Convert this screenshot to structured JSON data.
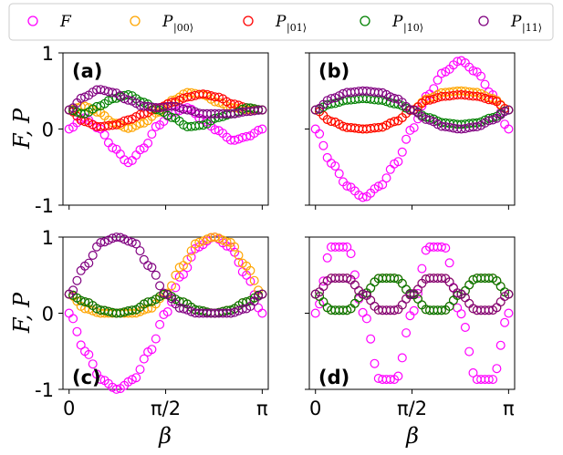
{
  "legend": {
    "entries": [
      {
        "symbol": "F",
        "sub": "",
        "color": "#ff00ff"
      },
      {
        "symbol": "P",
        "sub": "|00⟩",
        "color": "#ffa500"
      },
      {
        "symbol": "P",
        "sub": "|01⟩",
        "color": "#ff0000"
      },
      {
        "symbol": "P",
        "sub": "|10⟩",
        "color": "#008000"
      },
      {
        "symbol": "P",
        "sub": "|11⟩",
        "color": "#800080"
      }
    ]
  },
  "axes": {
    "ylabel": "F, P",
    "xlabel": "β",
    "y_ticks": [
      "1",
      "0",
      "-1"
    ],
    "x_ticks": [
      "0",
      "π/2",
      "π"
    ]
  },
  "chart_data": [
    {
      "type": "scatter",
      "panel_label": "(a)",
      "xlim": [
        -0.1,
        3.24
      ],
      "ylim": [
        -1,
        1
      ],
      "x_range": [
        0,
        3.1416
      ],
      "n_points": 50,
      "series": [
        {
          "name": "F",
          "color": "#ff00ff",
          "values": [
            0.0,
            0.15,
            0.01,
            -0.25,
            -0.44,
            -0.25,
            0.05,
            0.22,
            0.28,
            0.12,
            -0.02,
            -0.15,
            -0.1,
            0.0
          ],
          "values_note_x": "even samples of β over [0, π]"
        },
        {
          "name": "P|00⟩",
          "color": "#ffa500",
          "values": [
            0.25,
            0.3,
            0.22,
            0.08,
            0.01,
            0.08,
            0.22,
            0.38,
            0.48,
            0.45,
            0.35,
            0.28,
            0.25,
            0.25
          ]
        },
        {
          "name": "P|01⟩",
          "color": "#ff0000",
          "values": [
            0.25,
            0.1,
            0.03,
            0.05,
            0.12,
            0.2,
            0.28,
            0.35,
            0.42,
            0.46,
            0.42,
            0.33,
            0.28,
            0.25
          ]
        },
        {
          "name": "P|10⟩",
          "color": "#008000",
          "values": [
            0.25,
            0.2,
            0.3,
            0.4,
            0.45,
            0.35,
            0.25,
            0.15,
            0.03,
            0.05,
            0.15,
            0.2,
            0.28,
            0.25
          ]
        },
        {
          "name": "P|11⟩",
          "color": "#800080",
          "values": [
            0.25,
            0.42,
            0.52,
            0.48,
            0.38,
            0.3,
            0.28,
            0.3,
            0.25,
            0.2,
            0.2,
            0.2,
            0.23,
            0.25
          ]
        }
      ]
    },
    {
      "type": "scatter",
      "panel_label": "(b)",
      "xlim": [
        -0.1,
        3.24
      ],
      "ylim": [
        -1,
        1
      ],
      "x_range": [
        0,
        3.1416
      ],
      "n_points": 50,
      "series": [
        {
          "name": "F",
          "color": "#ff00ff",
          "values": [
            0.0,
            -0.45,
            -0.75,
            -0.9,
            -0.75,
            -0.45,
            0.0,
            0.45,
            0.75,
            0.9,
            0.75,
            0.45,
            0.0
          ]
        },
        {
          "name": "P|00⟩",
          "color": "#ffa500",
          "values": [
            0.25,
            0.1,
            0.02,
            0.0,
            0.02,
            0.1,
            0.25,
            0.4,
            0.48,
            0.5,
            0.48,
            0.4,
            0.25
          ]
        },
        {
          "name": "P|01⟩",
          "color": "#ff0000",
          "values": [
            0.25,
            0.1,
            0.02,
            0.0,
            0.02,
            0.1,
            0.25,
            0.38,
            0.43,
            0.45,
            0.43,
            0.38,
            0.25
          ]
        },
        {
          "name": "P|10⟩",
          "color": "#008000",
          "values": [
            0.25,
            0.33,
            0.38,
            0.4,
            0.38,
            0.33,
            0.25,
            0.15,
            0.08,
            0.06,
            0.08,
            0.15,
            0.25
          ]
        },
        {
          "name": "P|11⟩",
          "color": "#800080",
          "values": [
            0.25,
            0.4,
            0.48,
            0.5,
            0.48,
            0.4,
            0.25,
            0.12,
            0.03,
            0.0,
            0.03,
            0.12,
            0.25
          ]
        }
      ]
    },
    {
      "type": "scatter",
      "panel_label": "(c)",
      "xlim": [
        -0.1,
        3.24
      ],
      "ylim": [
        -1,
        1
      ],
      "x_range": [
        0,
        3.1416
      ],
      "n_points": 50,
      "series": [
        {
          "name": "F",
          "color": "#ff00ff",
          "values": [
            0.0,
            -0.5,
            -0.87,
            -1.0,
            -0.87,
            -0.5,
            0.0,
            0.5,
            0.87,
            1.0,
            0.87,
            0.5,
            0.0
          ]
        },
        {
          "name": "P|00⟩",
          "color": "#ffa500",
          "values": [
            0.25,
            0.06,
            0.0,
            0.0,
            0.0,
            0.06,
            0.25,
            0.62,
            0.93,
            1.0,
            0.93,
            0.62,
            0.25
          ]
        },
        {
          "name": "P|01⟩",
          "color": "#ff0000",
          "values": [
            0.25,
            0.15,
            0.04,
            0.0,
            0.04,
            0.15,
            0.25,
            0.15,
            0.04,
            0.0,
            0.04,
            0.15,
            0.25
          ]
        },
        {
          "name": "P|10⟩",
          "color": "#008000",
          "values": [
            0.25,
            0.15,
            0.04,
            0.0,
            0.04,
            0.15,
            0.25,
            0.15,
            0.04,
            0.0,
            0.04,
            0.15,
            0.25
          ]
        },
        {
          "name": "P|11⟩",
          "color": "#800080",
          "values": [
            0.25,
            0.62,
            0.93,
            1.0,
            0.93,
            0.62,
            0.25,
            0.06,
            0.0,
            0.0,
            0.0,
            0.06,
            0.25
          ]
        }
      ]
    },
    {
      "type": "scatter",
      "panel_label": "(d)",
      "xlim": [
        -0.1,
        3.24
      ],
      "ylim": [
        -1,
        1
      ],
      "x_range": [
        0,
        3.1416
      ],
      "n_points": 50,
      "series": [
        {
          "name": "F",
          "color": "#ff00ff",
          "values": [
            0.0,
            0.87,
            0.87,
            0.0,
            -0.87,
            -0.87,
            0.0,
            0.87,
            0.87,
            0.0,
            -0.87,
            -0.87,
            0.0
          ]
        },
        {
          "name": "P|00⟩",
          "color": "#ffa500",
          "values": [
            0.25,
            0.46,
            0.46,
            0.25,
            0.04,
            0.04,
            0.25,
            0.46,
            0.46,
            0.25,
            0.04,
            0.04,
            0.25
          ]
        },
        {
          "name": "P|01⟩",
          "color": "#ff0000",
          "values": [
            0.25,
            0.04,
            0.04,
            0.25,
            0.46,
            0.46,
            0.25,
            0.04,
            0.04,
            0.25,
            0.46,
            0.46,
            0.25
          ]
        },
        {
          "name": "P|10⟩",
          "color": "#008000",
          "values": [
            0.25,
            0.04,
            0.04,
            0.25,
            0.46,
            0.46,
            0.25,
            0.04,
            0.04,
            0.25,
            0.46,
            0.46,
            0.25
          ]
        },
        {
          "name": "P|11⟩",
          "color": "#800080",
          "values": [
            0.25,
            0.46,
            0.46,
            0.25,
            0.04,
            0.04,
            0.25,
            0.46,
            0.46,
            0.25,
            0.04,
            0.04,
            0.25
          ]
        }
      ]
    }
  ]
}
